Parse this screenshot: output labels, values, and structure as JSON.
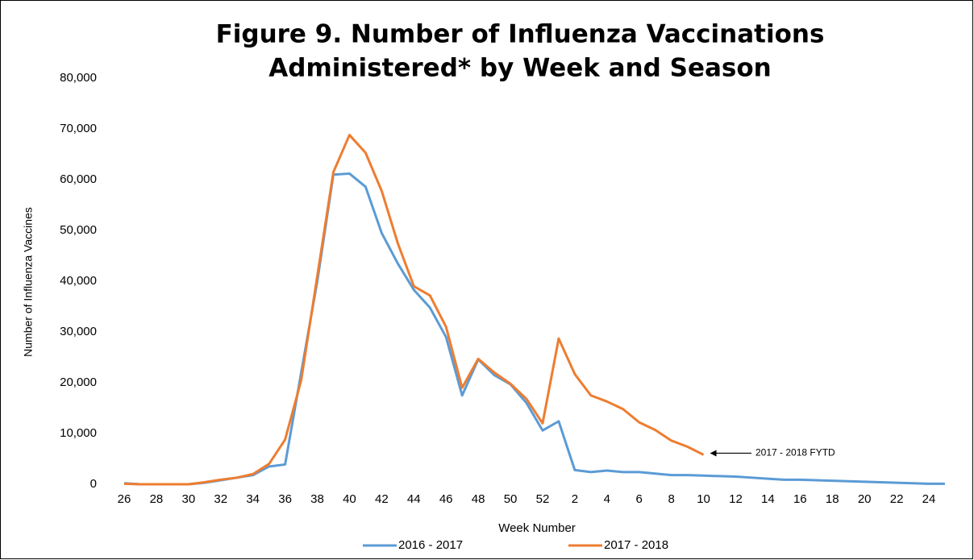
{
  "chart_data": {
    "type": "line",
    "title": [
      "Figure 9. Number of Influenza Vaccinations",
      "Administered* by Week and Season"
    ],
    "ylabel": "Number of Influenza Vaccines",
    "xlabel": "Week Number",
    "categories": [
      "26",
      null,
      "28",
      null,
      "30",
      null,
      "32",
      null,
      "34",
      null,
      "36",
      null,
      "38",
      null,
      "40",
      null,
      "42",
      null,
      "44",
      null,
      "46",
      null,
      "48",
      null,
      "50",
      null,
      "52",
      null,
      "2",
      null,
      "4",
      null,
      "6",
      null,
      "8",
      null,
      "10",
      null,
      "12",
      null,
      "14",
      null,
      "16",
      null,
      "18",
      null,
      "20",
      null,
      "22",
      null,
      "24",
      null
    ],
    "series": [
      {
        "name": "2016 - 2017",
        "color": "#5b9bd5",
        "values": [
          200,
          0,
          0,
          0,
          0,
          300,
          800,
          1300,
          1800,
          3500,
          3900,
          22000,
          40000,
          61000,
          61200,
          58600,
          49500,
          43500,
          38300,
          34800,
          29000,
          17500,
          24600,
          21500,
          19700,
          16000,
          10600,
          12400,
          2800,
          2400,
          2700,
          2400,
          2400,
          2100,
          1800,
          1800,
          1700,
          1600,
          1500,
          1300,
          1100,
          900,
          900,
          800,
          700,
          600,
          500,
          400,
          300,
          200,
          100,
          100
        ]
      },
      {
        "name": "2017 - 2018",
        "color": "#ed7d31",
        "values": [
          100,
          0,
          0,
          0,
          0,
          400,
          900,
          1300,
          2000,
          4000,
          8800,
          20500,
          41000,
          61500,
          68800,
          65300,
          57800,
          47500,
          39000,
          37200,
          31000,
          19000,
          24700,
          22000,
          19800,
          16800,
          12000,
          28700,
          21700,
          17500,
          16300,
          14800,
          12200,
          10700,
          8600,
          7400,
          5800,
          null,
          null,
          null,
          null,
          null,
          null,
          null,
          null,
          null,
          null,
          null,
          null,
          null,
          null,
          null
        ]
      }
    ],
    "ylim": [
      0,
      80000
    ],
    "yticks": [
      0,
      {
        "value": 10000,
        "label": "10,000"
      },
      {
        "value": 20000,
        "label": "20,000"
      },
      {
        "value": 30000,
        "label": "30,000"
      },
      {
        "value": 40000,
        "label": "40,000"
      },
      {
        "value": 50000,
        "label": "50,000"
      },
      {
        "value": 60000,
        "label": "60,000"
      },
      {
        "value": 70000,
        "label": "70,000"
      },
      {
        "value": 80000,
        "label": "80,000"
      }
    ],
    "annotation": "2017 - 2018 FYTD",
    "legend": "bottom"
  }
}
